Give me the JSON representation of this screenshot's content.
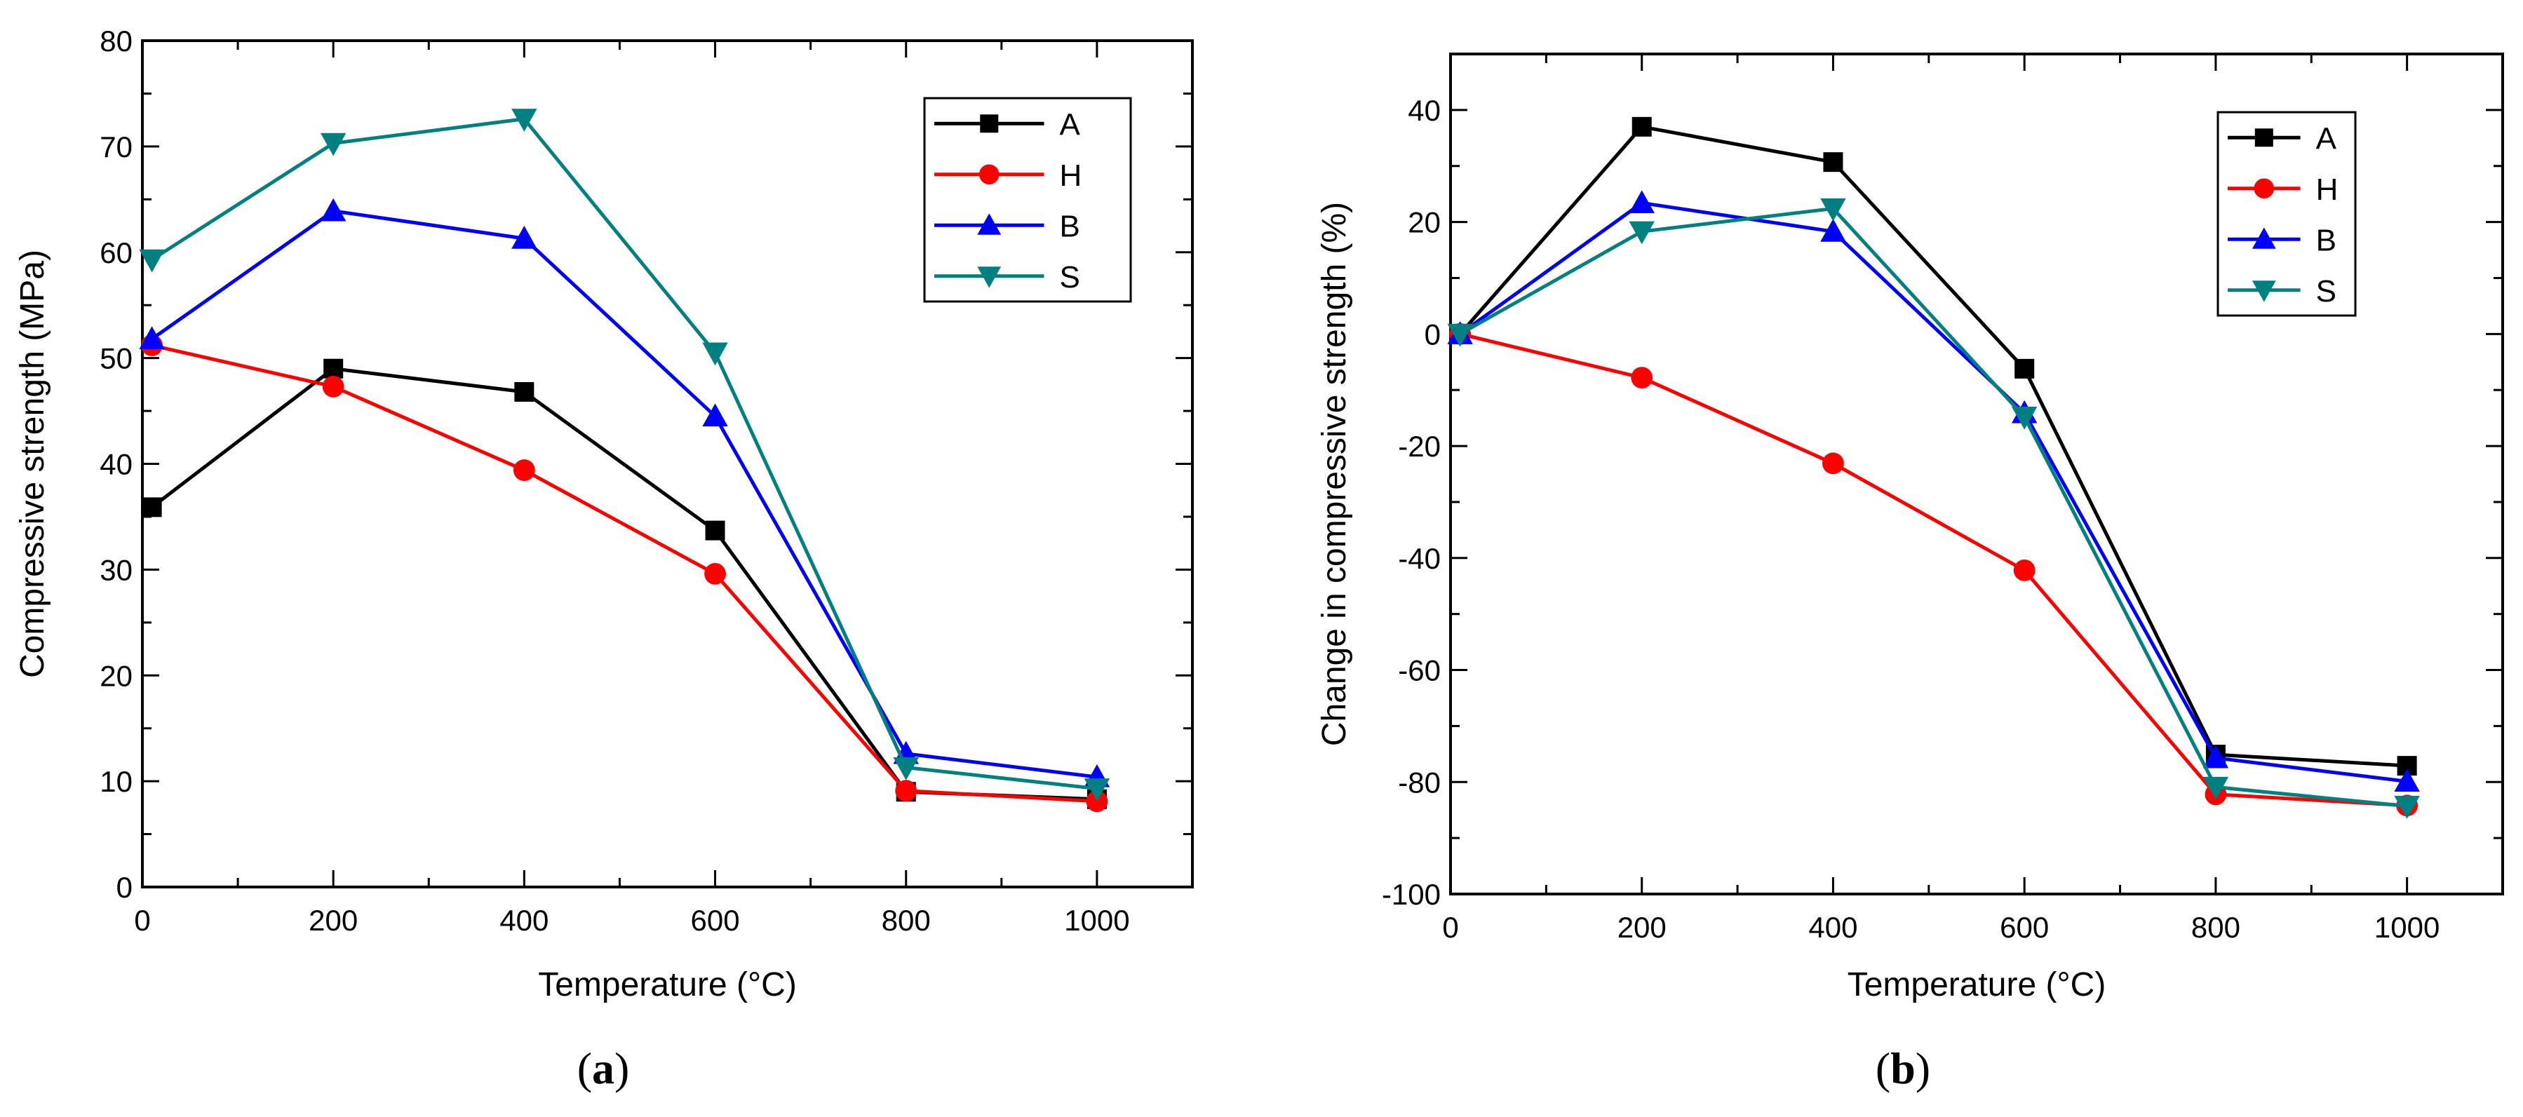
{
  "chart_data": [
    {
      "type": "line",
      "caption": "a",
      "xlabel": "Temperature (°C)",
      "ylabel": "Compressive strength (MPa)",
      "x": [
        10,
        200,
        400,
        600,
        800,
        1000
      ],
      "xlim": [
        0,
        1100
      ],
      "ylim": [
        0,
        80
      ],
      "xticks": [
        0,
        200,
        400,
        600,
        800,
        1000
      ],
      "yticks": [
        0,
        10,
        20,
        30,
        40,
        50,
        60,
        70,
        80
      ],
      "legend_position": "top-right",
      "series": [
        {
          "name": "A",
          "color": "#000000",
          "marker": "square",
          "values": [
            35.9,
            49.0,
            46.8,
            33.7,
            9.0,
            8.3
          ]
        },
        {
          "name": "H",
          "color": "#ff0000",
          "marker": "circle",
          "values": [
            51.2,
            47.3,
            39.4,
            29.6,
            9.1,
            8.1
          ]
        },
        {
          "name": "B",
          "color": "#0000ff",
          "marker": "triangle-up",
          "values": [
            51.8,
            63.9,
            61.3,
            44.5,
            12.6,
            10.4
          ]
        },
        {
          "name": "S",
          "color": "#008080",
          "marker": "triangle-down",
          "values": [
            59.3,
            70.3,
            72.6,
            50.5,
            11.3,
            9.3
          ]
        }
      ]
    },
    {
      "type": "line",
      "caption": "b",
      "xlabel": "Temperature (°C)",
      "ylabel": "Change in compressive strength (%)",
      "x": [
        10,
        200,
        400,
        600,
        800,
        1000
      ],
      "xlim": [
        0,
        1100
      ],
      "ylim": [
        -100,
        50
      ],
      "xticks": [
        0,
        200,
        400,
        600,
        800,
        1000
      ],
      "yticks": [
        -100,
        -80,
        -60,
        -40,
        -20,
        0,
        20,
        40
      ],
      "legend_position": "top-right",
      "series": [
        {
          "name": "A",
          "color": "#000000",
          "marker": "square",
          "values": [
            0,
            37,
            30.7,
            -6.2,
            -75.1,
            -77.1
          ]
        },
        {
          "name": "H",
          "color": "#ff0000",
          "marker": "circle",
          "values": [
            0,
            -7.8,
            -23.1,
            -42.2,
            -82.2,
            -84.2
          ]
        },
        {
          "name": "B",
          "color": "#0000ff",
          "marker": "triangle-up",
          "values": [
            0,
            23.4,
            18.3,
            -14.1,
            -75.7,
            -79.9
          ]
        },
        {
          "name": "S",
          "color": "#008080",
          "marker": "triangle-down",
          "values": [
            0,
            18.3,
            22.4,
            -14.8,
            -80.9,
            -84.3
          ]
        }
      ]
    }
  ]
}
